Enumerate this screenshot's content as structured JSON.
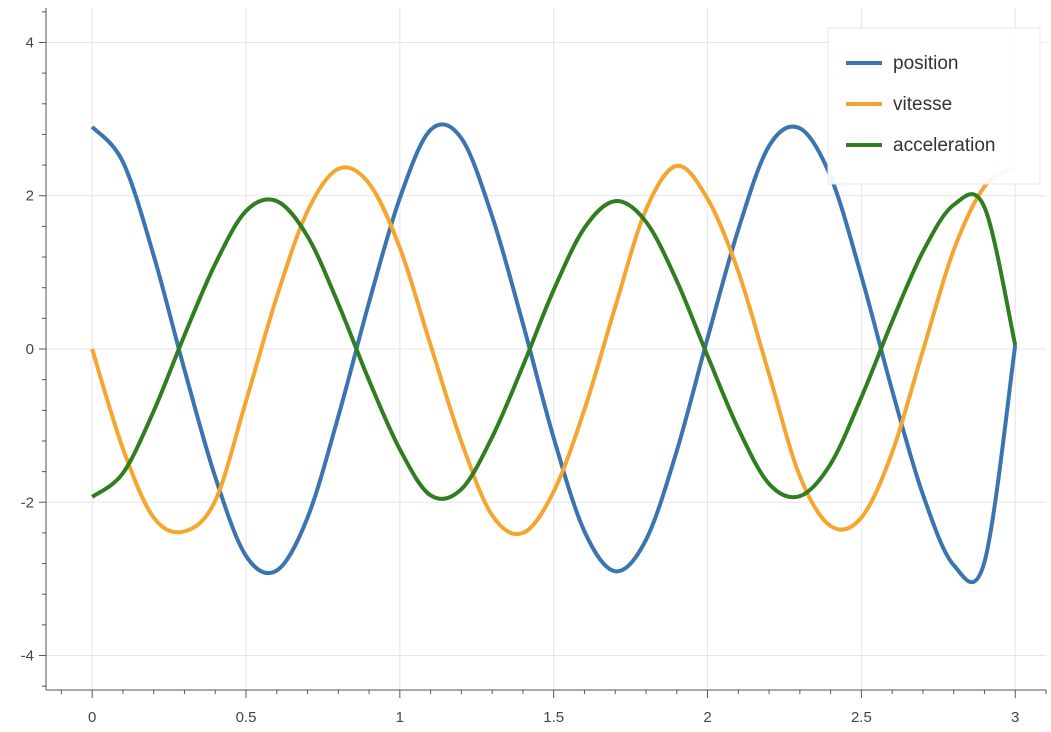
{
  "chart_data": {
    "type": "line",
    "title": "",
    "xlabel": "",
    "ylabel": "",
    "xlim": [
      -0.15,
      3.1
    ],
    "ylim": [
      -4.45,
      4.45
    ],
    "xticks": [
      0,
      0.5,
      1,
      1.5,
      2,
      2.5,
      3
    ],
    "xtick_labels": [
      "0",
      "0.5",
      "1",
      "1.5",
      "2",
      "2.5",
      "3"
    ],
    "yticks": [
      -4,
      -2,
      0,
      2,
      4
    ],
    "ytick_labels": [
      "-4",
      "-2",
      "0",
      "2",
      "4"
    ],
    "grid": true,
    "legend_position": "top-right",
    "x": [
      0,
      0.1,
      0.2,
      0.3,
      0.4,
      0.5,
      0.6,
      0.7,
      0.8,
      0.9,
      1.0,
      1.1,
      1.2,
      1.3,
      1.4,
      1.5,
      1.6,
      1.7,
      1.8,
      1.9,
      2.0,
      2.1,
      2.2,
      2.3,
      2.4,
      2.5,
      2.6,
      2.7,
      2.8,
      2.9,
      3.0
    ],
    "series": [
      {
        "name": "position",
        "color": "#3a75b0",
        "values": [
          2.9,
          2.44,
          1.22,
          -0.27,
          -1.67,
          -2.7,
          -2.89,
          -2.2,
          -0.88,
          0.61,
          1.97,
          2.86,
          2.75,
          1.73,
          0.33,
          -1.16,
          -2.38,
          -2.9,
          -2.49,
          -1.33,
          0.14,
          1.56,
          2.65,
          2.88,
          2.25,
          0.95,
          -0.54,
          -1.9,
          -2.82,
          -2.78,
          0.05
        ]
      },
      {
        "name": "vitesse",
        "color": "#f5a631",
        "values": [
          0,
          -1.3,
          -2.2,
          -2.38,
          -1.98,
          -0.68,
          0.68,
          1.8,
          2.35,
          2.16,
          1.32,
          0.05,
          -1.21,
          -2.17,
          -2.4,
          -1.86,
          -0.79,
          0.55,
          1.82,
          2.39,
          1.96,
          1.01,
          -0.33,
          -1.66,
          -2.31,
          -2.2,
          -1.35,
          -0.02,
          1.29,
          2.12,
          2.38
        ]
      },
      {
        "name": "acceleration",
        "color": "#2f7e1f",
        "values": [
          -1.93,
          -1.62,
          -0.81,
          0.18,
          1.11,
          1.8,
          1.93,
          1.47,
          0.59,
          -0.41,
          -1.31,
          -1.91,
          -1.83,
          -1.15,
          -0.22,
          0.77,
          1.58,
          1.93,
          1.66,
          0.89,
          -0.09,
          -1.04,
          -1.76,
          -1.92,
          -1.5,
          -0.63,
          0.36,
          1.27,
          1.88,
          1.85,
          0.05
        ]
      }
    ]
  }
}
